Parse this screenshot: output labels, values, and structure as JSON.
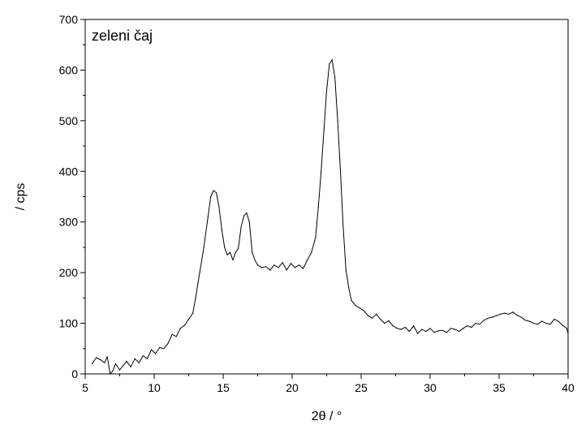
{
  "chart_data": {
    "type": "line",
    "annotation": "zeleni čaj",
    "xlabel": "2θ / °",
    "ylabel": "/ cps",
    "xlim": [
      5,
      40
    ],
    "ylim": [
      0,
      700
    ],
    "x_ticks": [
      5,
      10,
      15,
      20,
      25,
      30,
      35,
      40
    ],
    "y_ticks": [
      0,
      100,
      200,
      300,
      400,
      500,
      600,
      700
    ],
    "grid": false,
    "series": [
      {
        "color": "#000000",
        "x": [
          5.5,
          5.8,
          6.1,
          6.4,
          6.6,
          6.8,
          7.0,
          7.2,
          7.5,
          7.8,
          8.0,
          8.3,
          8.6,
          8.9,
          9.2,
          9.5,
          9.8,
          10.1,
          10.4,
          10.7,
          11.0,
          11.3,
          11.6,
          11.9,
          12.2,
          12.5,
          12.8,
          13.0,
          13.3,
          13.6,
          13.9,
          14.1,
          14.3,
          14.5,
          14.7,
          14.9,
          15.1,
          15.3,
          15.5,
          15.7,
          15.9,
          16.1,
          16.3,
          16.5,
          16.7,
          16.9,
          17.1,
          17.3,
          17.5,
          17.8,
          18.1,
          18.4,
          18.7,
          19.0,
          19.3,
          19.6,
          19.9,
          20.2,
          20.5,
          20.8,
          21.1,
          21.4,
          21.7,
          21.9,
          22.1,
          22.3,
          22.5,
          22.7,
          22.9,
          23.1,
          23.3,
          23.5,
          23.7,
          23.9,
          24.1,
          24.3,
          24.6,
          24.9,
          25.2,
          25.5,
          25.8,
          26.1,
          26.4,
          26.7,
          27.0,
          27.3,
          27.6,
          27.9,
          28.2,
          28.5,
          28.8,
          29.1,
          29.4,
          29.7,
          30.0,
          30.3,
          30.6,
          30.9,
          31.2,
          31.5,
          31.8,
          32.1,
          32.4,
          32.7,
          33.0,
          33.3,
          33.6,
          33.9,
          34.2,
          34.5,
          34.8,
          35.1,
          35.4,
          35.7,
          36.0,
          36.3,
          36.6,
          36.9,
          37.2,
          37.5,
          37.8,
          38.1,
          38.4,
          38.7,
          39.0,
          39.3,
          39.6,
          39.9,
          40.0
        ],
        "y": [
          20,
          32,
          28,
          22,
          34,
          0,
          6,
          20,
          8,
          18,
          25,
          14,
          30,
          22,
          36,
          30,
          48,
          40,
          52,
          50,
          60,
          78,
          74,
          90,
          96,
          108,
          120,
          150,
          200,
          250,
          310,
          350,
          362,
          358,
          330,
          285,
          250,
          235,
          240,
          225,
          240,
          248,
          290,
          312,
          318,
          300,
          240,
          225,
          215,
          210,
          212,
          205,
          215,
          210,
          220,
          205,
          218,
          210,
          215,
          208,
          225,
          240,
          270,
          330,
          400,
          480,
          560,
          612,
          620,
          585,
          500,
          400,
          290,
          205,
          170,
          145,
          135,
          130,
          125,
          115,
          110,
          118,
          108,
          100,
          105,
          95,
          90,
          88,
          92,
          84,
          95,
          80,
          88,
          84,
          90,
          82,
          85,
          86,
          82,
          90,
          88,
          84,
          90,
          95,
          92,
          100,
          98,
          106,
          110,
          112,
          115,
          118,
          120,
          118,
          122,
          116,
          112,
          106,
          104,
          100,
          98,
          104,
          100,
          98,
          108,
          104,
          96,
          90,
          80
        ]
      }
    ]
  }
}
